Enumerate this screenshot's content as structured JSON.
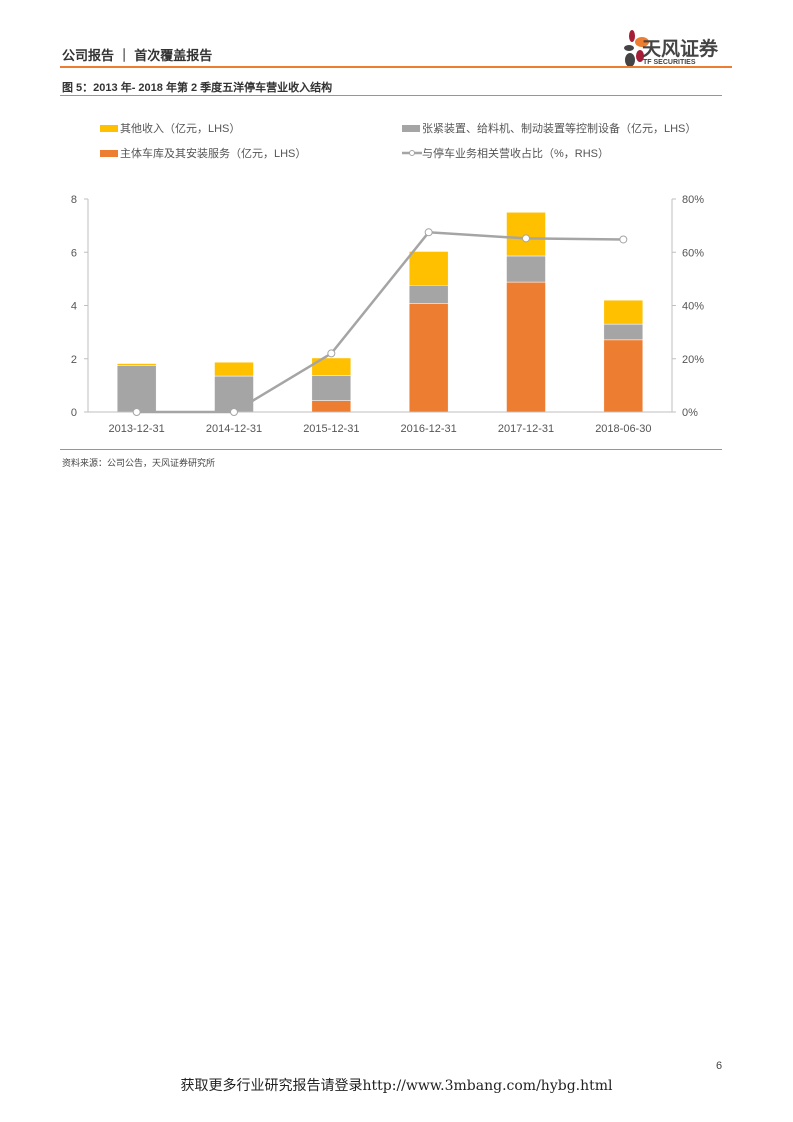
{
  "header": {
    "title": "公司报告 ｜ 首次覆盖报告",
    "logo_cn": "天风证券",
    "logo_en": "TF SECURITIES"
  },
  "figure_title": "图 5：2013 年- 2018 年第 2 季度五洋停车营业收入结构",
  "source": "资料来源：公司公告，天风证券研究所",
  "page_number": "6",
  "footer": "获取更多行业研究报告请登录http://www.3mbang.com/hybg.html",
  "colors": {
    "other": "#ffc000",
    "equipment": "#a5a5a5",
    "main": "#ed7d31",
    "line": "#a5a5a5",
    "accent": "#ed7d31"
  },
  "chart_data": {
    "type": "bar",
    "stacked": true,
    "categories": [
      "2013-12-31",
      "2014-12-31",
      "2015-12-31",
      "2016-12-31",
      "2017-12-31",
      "2018-06-30"
    ],
    "series": [
      {
        "name": "主体车库及其安装服务（亿元，LHS）",
        "axis": "left",
        "values": [
          0,
          0,
          0.43,
          4.07,
          4.88,
          2.71
        ]
      },
      {
        "name": "张紧装置、给料机、制动装置等控制设备（亿元，LHS）",
        "axis": "left",
        "values": [
          1.75,
          1.35,
          0.94,
          0.69,
          0.98,
          0.59
        ]
      },
      {
        "name": "其他收入（亿元，LHS）",
        "axis": "left",
        "values": [
          0.07,
          0.52,
          0.66,
          1.27,
          1.64,
          0.9
        ]
      },
      {
        "name": "与停车业务相关营收占比（%，RHS）",
        "axis": "right",
        "type": "line",
        "values": [
          0,
          0,
          22,
          67.5,
          65.2,
          64.8
        ]
      }
    ],
    "ylim": [
      0,
      8
    ],
    "yticks": [
      "0",
      "2",
      "4",
      "6",
      "8"
    ],
    "y2lim": [
      0,
      80
    ],
    "y2ticks": [
      "0%",
      "20%",
      "40%",
      "60%",
      "80%"
    ],
    "legend_position": "top"
  }
}
